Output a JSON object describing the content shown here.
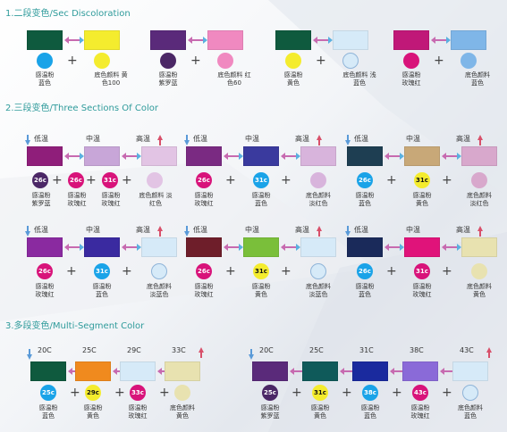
{
  "section1": {
    "title": "1.二段变色/Sec Discoloration"
  },
  "section2": {
    "title": "2.三段变色/Three Sections Of Color"
  },
  "section3": {
    "title": "3.多段变色/Multi-Segment Color"
  },
  "temps": {
    "low": "低温",
    "mid": "中温",
    "high": "高温"
  },
  "s1": {
    "g1": {
      "cap1": "感温粉\n蓝色",
      "cap2": "底色颜料 黄\n色100",
      "c1": "#1aa3e8",
      "s1": "#0f5a3e",
      "s2": "#f4ec2e"
    },
    "g2": {
      "cap1": "感温粉\n紫罗蓝",
      "cap2": "底色颜料 红\n色60",
      "c1": "#4b2766",
      "s1": "#5a2a7a",
      "s2": "#f089c0"
    },
    "g3": {
      "cap1": "感温粉\n黄色",
      "cap2": "底色颜料 浅\n蓝色",
      "c1": "#f4ec2e",
      "s1": "#0f5a3e",
      "s2": "#d6eaf8"
    },
    "g4": {
      "cap1": "感温粉\n玫瑰红",
      "cap2": "底色颜料\n蓝色",
      "c1": "#d8137a",
      "s1": "#c01878",
      "s2": "#7fb6e8"
    }
  },
  "s2": {
    "r1": [
      {
        "swatches": [
          "#8f1e7a",
          "#c8a6d8",
          "#e2c4e4"
        ],
        "circles": [
          {
            "label": "26c",
            "color": "#4b2766"
          },
          {
            "label": "26c",
            "color": "#d8137a"
          },
          {
            "label": "31c",
            "color": "#d8137a"
          }
        ],
        "extra": "#e2c4e4",
        "caps": [
          "感温粉\n紫罗蓝",
          "感温粉\n玫瑰红",
          "感温粉\n玫瑰红",
          "底色颜料 淡\n红色"
        ]
      },
      {
        "swatches": [
          "#7a2a82",
          "#3a3a9e",
          "#d8b4dc"
        ],
        "circles": [
          {
            "label": "26c",
            "color": "#d8137a"
          },
          {
            "label": "31c",
            "color": "#1aa3e8"
          }
        ],
        "extra": "#d8b4dc",
        "caps": [
          "感温粉\n玫瑰红",
          "感温粉\n蓝色",
          "底色颜料\n淡红色"
        ]
      },
      {
        "swatches": [
          "#1e3e52",
          "#c8a878",
          "#d8a8cc"
        ],
        "circles": [
          {
            "label": "26c",
            "color": "#1aa3e8"
          },
          {
            "label": "31c",
            "color": "#f4ec2e"
          }
        ],
        "extra": "#d8a8cc",
        "caps": [
          "感温粉\n蓝色",
          "感温粉\n黄色",
          "底色颜料\n淡红色"
        ]
      }
    ],
    "r2": [
      {
        "swatches": [
          "#8a2aa0",
          "#3a2aa0",
          "#d6eaf8"
        ],
        "circles": [
          {
            "label": "26c",
            "color": "#d8137a"
          },
          {
            "label": "31c",
            "color": "#1aa3e8"
          }
        ],
        "extra": "#d6eaf8",
        "caps": [
          "感温粉\n玫瑰红",
          "感温粉\n蓝色",
          "底色颜料\n淡蓝色"
        ]
      },
      {
        "swatches": [
          "#6e1e2a",
          "#7abf3a",
          "#d6eaf8"
        ],
        "circles": [
          {
            "label": "26c",
            "color": "#d8137a"
          },
          {
            "label": "31c",
            "color": "#f4ec2e"
          }
        ],
        "extra": "#d6eaf8",
        "caps": [
          "感温粉\n玫瑰红",
          "感温粉\n黄色",
          "底色颜料\n淡蓝色"
        ]
      },
      {
        "swatches": [
          "#1a2a5a",
          "#e0137a",
          "#e8e2b0"
        ],
        "circles": [
          {
            "label": "26c",
            "color": "#1aa3e8"
          },
          {
            "label": "31c",
            "color": "#d8137a"
          }
        ],
        "extra": "#e8e2b0",
        "caps": [
          "感温粉\n蓝色",
          "感温粉\n玫瑰红",
          "底色颜料\n黄色"
        ]
      }
    ]
  },
  "s3": {
    "g1": {
      "temps": [
        "20C",
        "25C",
        "29C",
        "33C"
      ],
      "swatches": [
        "#0f5a3e",
        "#f08a1e",
        "#d6eaf8",
        "#e8e2b0"
      ],
      "circles": [
        {
          "label": "25c",
          "color": "#1aa3e8"
        },
        {
          "label": "29c",
          "color": "#f4ec2e"
        },
        {
          "label": "33c",
          "color": "#d8137a"
        }
      ],
      "extra": "#e8e2b0",
      "caps": [
        "感温粉\n蓝色",
        "感温粉\n黄色",
        "感温粉\n玫瑰红",
        "底色颜料\n黄色"
      ]
    },
    "g2": {
      "temps": [
        "20C",
        "25C",
        "31C",
        "38C",
        "43C"
      ],
      "swatches": [
        "#5a2a7a",
        "#0f5a5a",
        "#1a2a9e",
        "#8a6ad8",
        "#d6eaf8"
      ],
      "circles": [
        {
          "label": "25c",
          "color": "#4b2766"
        },
        {
          "label": "31c",
          "color": "#f4ec2e"
        },
        {
          "label": "38c",
          "color": "#1aa3e8"
        },
        {
          "label": "43c",
          "color": "#d8137a"
        }
      ],
      "extra": "#d6eaf8",
      "caps": [
        "感温粉\n紫罗蓝",
        "感温粉\n黄色",
        "感温粉\n蓝色",
        "感温粉\n玫瑰红",
        "底色颜料\n蓝色"
      ]
    }
  }
}
